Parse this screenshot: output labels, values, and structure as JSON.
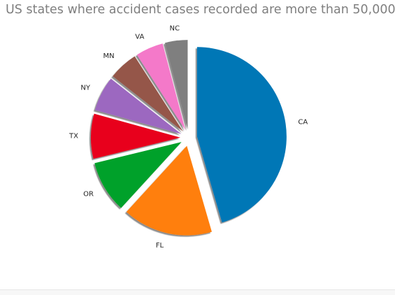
{
  "chart_data": {
    "type": "pie",
    "title": "US states where accident cases recorded are more than 50,000",
    "categories": [
      "CA",
      "FL",
      "OR",
      "TX",
      "NY",
      "MN",
      "VA",
      "NC"
    ],
    "values": [
      45.5,
      16.3,
      9.4,
      8.1,
      6.3,
      5.3,
      5.0,
      4.1
    ],
    "colors": [
      "#0077b6",
      "#ff7f0e",
      "#00a12a",
      "#e8001f",
      "#9c67c0",
      "#95574a",
      "#f479c9",
      "#7f7f7f"
    ],
    "start_direction": "top",
    "direction": "clockwise",
    "exploded": true,
    "shadow": true
  }
}
